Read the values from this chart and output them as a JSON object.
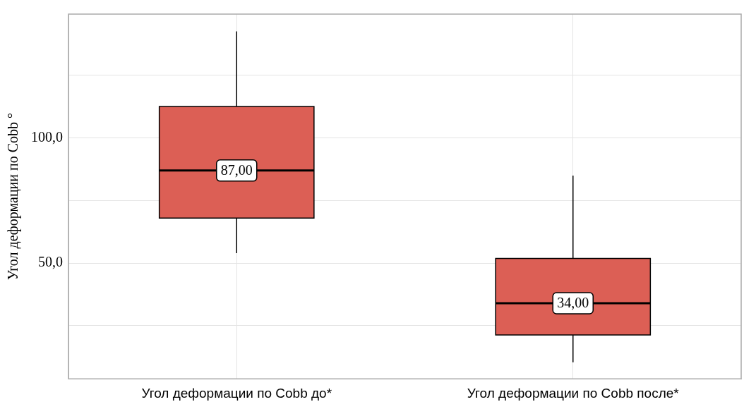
{
  "chart_data": {
    "type": "box",
    "ylabel": "Угол деформации по Cobb °",
    "categories": [
      "Угол деформации по Cobb до*",
      "Угол деформации по Cobb после*"
    ],
    "boxes": [
      {
        "low": 54,
        "q1": 68,
        "median": 87,
        "q3": 112.6,
        "high": 142.6
      },
      {
        "low": 10.4,
        "q1": 21.3,
        "median": 34,
        "q3": 51.9,
        "high": 85
      }
    ],
    "value_labels": [
      "87,00",
      "34,00"
    ],
    "color": "#dc5f55",
    "ylim": [
      3.8,
      149.5
    ],
    "yticks": [
      {
        "value": 25,
        "label": null
      },
      {
        "value": 50,
        "label": "50,0"
      },
      {
        "value": 75,
        "label": null
      },
      {
        "value": 100,
        "label": "100,0"
      },
      {
        "value": 125,
        "label": null
      }
    ],
    "grid": true,
    "legend": false
  }
}
